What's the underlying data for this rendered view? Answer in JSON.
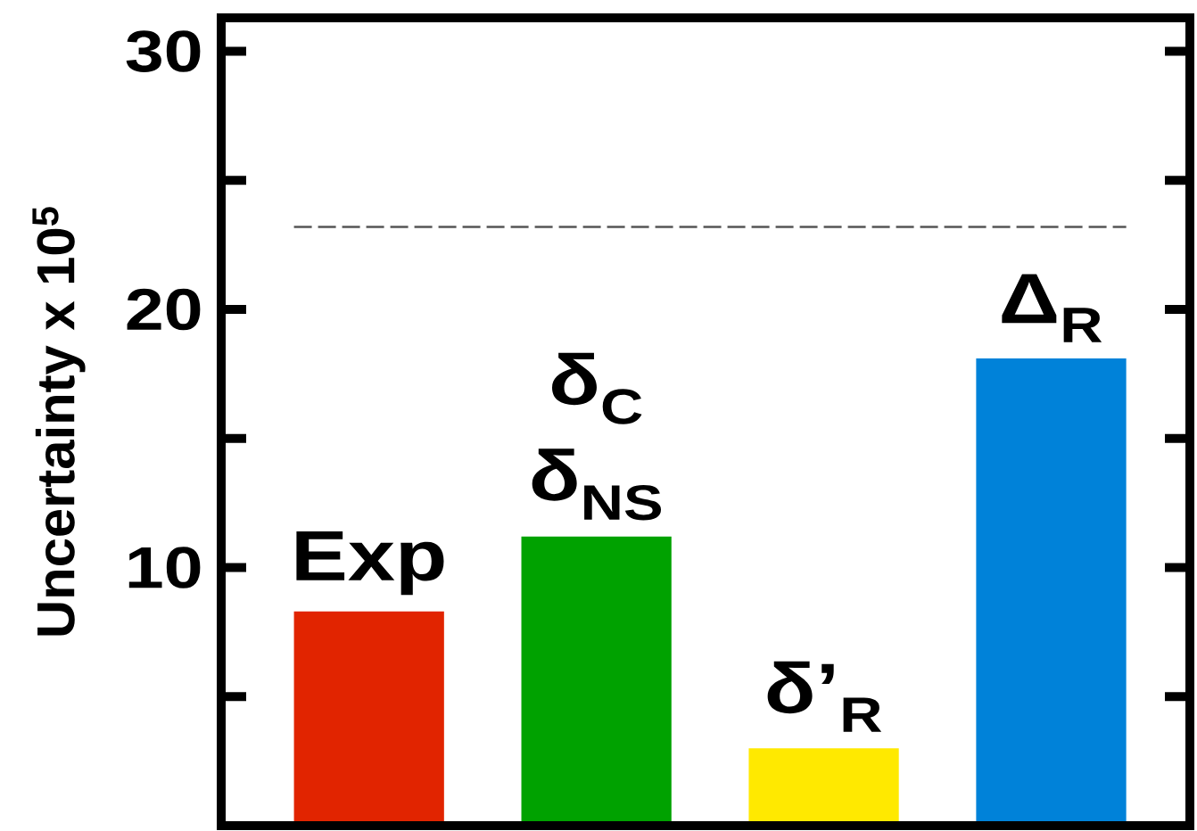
{
  "chart_data": {
    "type": "bar",
    "categories": [
      "Exp",
      "δ$_{C}$ δ$_{NS}$",
      "δ’$_{R}$",
      "Δ$_{R}$"
    ],
    "values": [
      8.3,
      11.2,
      3.0,
      18.1
    ],
    "colors": [
      "#e12400",
      "#00a200",
      "#ffe900",
      "#0082d9"
    ],
    "ylabel": "Uncertainty x 10$^{5}$",
    "ylim": [
      0,
      31.3
    ],
    "yticks": [
      {
        "value": 5,
        "label": null
      },
      10,
      {
        "value": 15,
        "label": null
      },
      20,
      {
        "value": 25,
        "label": null
      },
      30
    ],
    "ref_lines": [
      {
        "axis": "y",
        "value": 23.2,
        "color": "#555555",
        "line_style": "dashed"
      }
    ]
  }
}
